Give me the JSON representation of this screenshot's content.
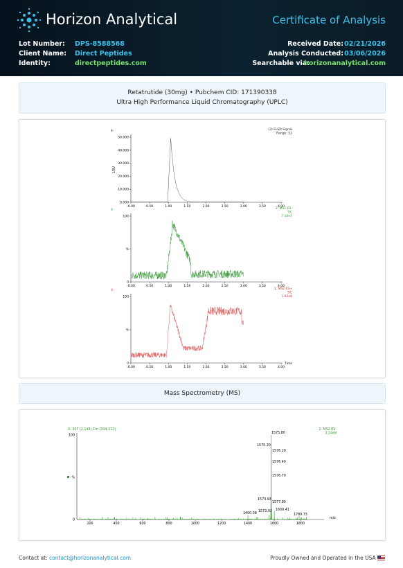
{
  "header": {
    "brand": "Horizon Analytical",
    "title": "Certificate of Analysis",
    "left": [
      {
        "label": "Lot Number:",
        "value": "DPS-8588568"
      },
      {
        "label": "Client Name:",
        "value": "Direct Peptides"
      },
      {
        "label": "Identity:",
        "value": "directpeptides.com"
      }
    ],
    "right": [
      {
        "label": "Received Date:",
        "value": "02/21/2026"
      },
      {
        "label": "Analysis Conducted:",
        "value": "03/06/2026"
      },
      {
        "label": "Searchable via:",
        "value": "horizonanalytical.com"
      }
    ]
  },
  "sample": {
    "line1": "Retatrutide (30mg) • Pubchem CID: 171390338",
    "line2": "Ultra High Performance Liquid Chromatography (UPLC)"
  },
  "hplc": {
    "xlabel": "Time",
    "panels": [
      {
        "tag": "4-",
        "legend": [
          "(3) ELSD Signal",
          "Range: 52"
        ],
        "ylabel": "LSU",
        "yticks": [
          "50.000",
          "40.000",
          "30.000",
          "20.000",
          "10.000",
          "0.000"
        ],
        "xticks": [
          "-0.00",
          "0.50",
          "1.00",
          "1.50",
          "2.00",
          "2.50",
          "3.00",
          "3.50",
          "4.00"
        ]
      },
      {
        "tag": "4-",
        "legend": [
          "2: MS2 ES-",
          "TIC",
          "7.10e7"
        ],
        "yticks": [
          "100",
          "%",
          "0"
        ],
        "xticks": [
          "-0.00",
          "0.50",
          "1.00",
          "1.50",
          "2.00",
          "2.50",
          "3.00",
          "3.50",
          "4.00"
        ]
      },
      {
        "tag": "4-",
        "legend": [
          "1: MS2 ES+",
          "TIC",
          "1.62e8"
        ],
        "yticks": [
          "100",
          "%",
          "0"
        ],
        "xticks": [
          "-0.00",
          "0.50",
          "1.00",
          "1.50",
          "2.00",
          "2.50",
          "3.00",
          "3.50",
          "4.00"
        ]
      }
    ]
  },
  "ms": {
    "title": "Mass Spectrometry (MS)",
    "tag": "4- 30T (2.149) Cm (304:312)",
    "legend": [
      "2: MS2 ES-",
      "3.24e8"
    ],
    "yticks": [
      "100",
      "%",
      "0"
    ],
    "xticks": [
      "200",
      "400",
      "600",
      "800",
      "1000",
      "1200",
      "1400",
      "1600",
      "1800"
    ],
    "xlabel": "m/z",
    "peak_labels": [
      "1575.80",
      "1575.30",
      "1576.20",
      "1576.40",
      "1576.70",
      "1574.93",
      "1577.80",
      "1573.93",
      "1600.41",
      "1400.38",
      "1789.73"
    ]
  },
  "footer": {
    "contact_label": "Contact at:",
    "email": "contact@horizonanalytical.com",
    "origin": "Proudly Owned and Operated in the USA"
  }
}
